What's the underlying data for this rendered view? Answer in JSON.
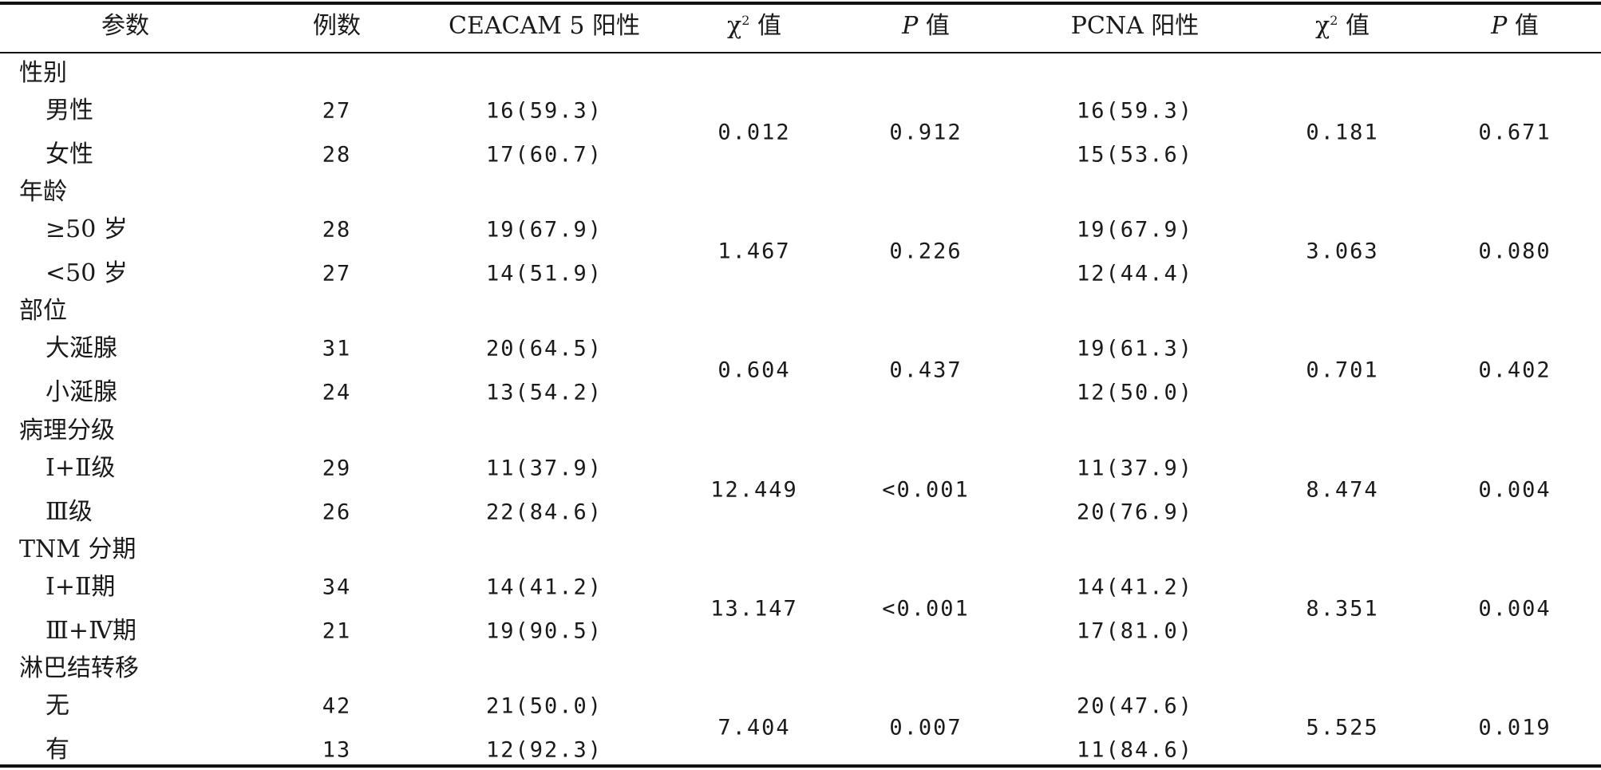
{
  "headers": {
    "param": "参数",
    "count": "例数",
    "ceacam": "CEACAM 5 阳性",
    "chi_a_sym": "χ",
    "chi_a_sup": "2",
    "chi_a_text": " 值",
    "p_a_italic": "P",
    "p_a_text": " 值",
    "pcna": "PCNA 阳性",
    "chi_b_sym": "χ",
    "chi_b_sup": "2",
    "chi_b_text": " 值",
    "p_b_italic": "P",
    "p_b_text": " 值"
  },
  "groups": [
    {
      "label": "性别",
      "rows": [
        {
          "name": "男性",
          "count": "27",
          "ceacam": "16(59.3)",
          "pcna": "16(59.3)"
        },
        {
          "name": "女性",
          "count": "28",
          "ceacam": "17(60.7)",
          "pcna": "15(53.6)"
        }
      ],
      "chi_a": "0.012",
      "p_a": "0.912",
      "chi_b": "0.181",
      "p_b": "0.671"
    },
    {
      "label": "年龄",
      "rows": [
        {
          "name": "≥50 岁",
          "count": "28",
          "ceacam": "19(67.9)",
          "pcna": "19(67.9)"
        },
        {
          "name": "<50 岁",
          "count": "27",
          "ceacam": "14(51.9)",
          "pcna": "12(44.4)"
        }
      ],
      "chi_a": "1.467",
      "p_a": "0.226",
      "chi_b": "3.063",
      "p_b": "0.080"
    },
    {
      "label": "部位",
      "rows": [
        {
          "name": "大涎腺",
          "count": "31",
          "ceacam": "20(64.5)",
          "pcna": "19(61.3)"
        },
        {
          "name": "小涎腺",
          "count": "24",
          "ceacam": "13(54.2)",
          "pcna": "12(50.0)"
        }
      ],
      "chi_a": "0.604",
      "p_a": "0.437",
      "chi_b": "0.701",
      "p_b": "0.402"
    },
    {
      "label": "病理分级",
      "rows": [
        {
          "name": "Ⅰ+Ⅱ级",
          "count": "29",
          "ceacam": "11(37.9)",
          "pcna": "11(37.9)"
        },
        {
          "name": "Ⅲ级",
          "count": "26",
          "ceacam": "22(84.6)",
          "pcna": "20(76.9)"
        }
      ],
      "chi_a": "12.449",
      "p_a": "<0.001",
      "chi_b": "8.474",
      "p_b": "0.004"
    },
    {
      "label": "TNM 分期",
      "rows": [
        {
          "name": "Ⅰ+Ⅱ期",
          "count": "34",
          "ceacam": "14(41.2)",
          "pcna": "14(41.2)"
        },
        {
          "name": "Ⅲ+Ⅳ期",
          "count": "21",
          "ceacam": "19(90.5)",
          "pcna": "17(81.0)"
        }
      ],
      "chi_a": "13.147",
      "p_a": "<0.001",
      "chi_b": "8.351",
      "p_b": "0.004"
    },
    {
      "label": "淋巴结转移",
      "rows": [
        {
          "name": "无",
          "count": "42",
          "ceacam": "21(50.0)",
          "pcna": "20(47.6)"
        },
        {
          "name": "有",
          "count": "13",
          "ceacam": "12(92.3)",
          "pcna": "11(84.6)"
        }
      ],
      "chi_a": "7.404",
      "p_a": "0.007",
      "chi_b": "5.525",
      "p_b": "0.019"
    }
  ]
}
